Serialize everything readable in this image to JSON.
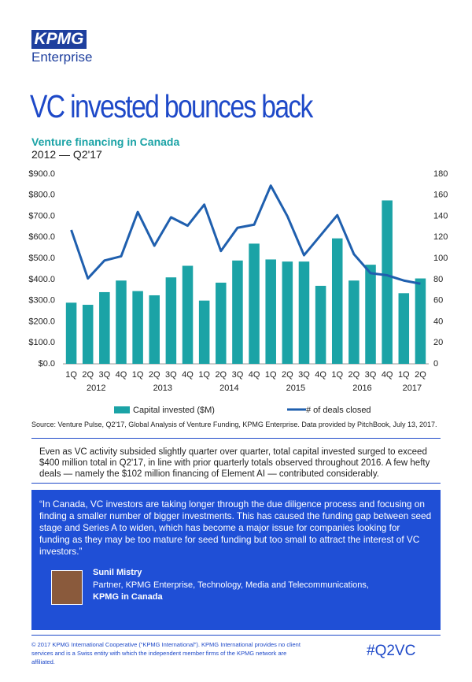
{
  "header": {
    "logo": "KPMG",
    "logo_sub": "Enterprise",
    "title": "VC invested bounces back"
  },
  "chart_data": {
    "type": "bar",
    "title": "Venture financing in Canada",
    "subtitle": "2012 — Q2'17",
    "categories": [
      "1Q",
      "2Q",
      "3Q",
      "4Q",
      "1Q",
      "2Q",
      "3Q",
      "4Q",
      "1Q",
      "2Q",
      "3Q",
      "4Q",
      "1Q",
      "2Q",
      "3Q",
      "4Q",
      "1Q",
      "2Q",
      "3Q",
      "4Q",
      "1Q",
      "2Q"
    ],
    "years": [
      "2012",
      "2013",
      "2014",
      "2015",
      "2016",
      "2017"
    ],
    "series": [
      {
        "name": "Capital invested ($M)",
        "type": "bar",
        "color": "#1ba3a6",
        "values": [
          290,
          280,
          340,
          395,
          345,
          325,
          410,
          465,
          300,
          385,
          490,
          570,
          495,
          485,
          485,
          370,
          595,
          395,
          470,
          775,
          335,
          405
        ]
      },
      {
        "name": "# of deals closed",
        "type": "line",
        "axis": "y2",
        "color": "#1f5fae",
        "values": [
          127,
          81,
          98,
          102,
          144,
          112,
          139,
          131,
          151,
          107,
          129,
          132,
          169,
          140,
          103,
          122,
          141,
          104,
          86,
          84,
          79,
          76
        ]
      }
    ],
    "ylim": [
      0,
      900
    ],
    "yticks": [
      {
        "value": 0,
        "label": "$0.0"
      },
      {
        "value": 100,
        "label": "$100.0"
      },
      {
        "value": 200,
        "label": "$200.0"
      },
      {
        "value": 300,
        "label": "$300.0"
      },
      {
        "value": 400,
        "label": "$400.0"
      },
      {
        "value": 500,
        "label": "$500.0"
      },
      {
        "value": 600,
        "label": "$600.0"
      },
      {
        "value": 700,
        "label": "$700.0"
      },
      {
        "value": 800,
        "label": "$800.0"
      },
      {
        "value": 900,
        "label": "$900.0"
      }
    ],
    "y2lim": [
      0,
      180
    ],
    "y2ticks": [
      0,
      20,
      40,
      60,
      80,
      100,
      120,
      140,
      160,
      180
    ],
    "grid": false,
    "legend": "bottom",
    "source": "Source: Venture Pulse, Q2'17, Global Analysis of Venture Funding, KPMG Enterprise. Data provided by PitchBook, July 13, 2017."
  },
  "body": "Even as VC activity subsided slightly quarter over quarter, total capital invested surged to exceed $400 million total in Q2'17, in line with prior quarterly totals observed throughout 2016. A few hefty deals — namely the $102 million financing of Element AI — contributed considerably.",
  "quote": {
    "text": "“In Canada, VC investors are taking longer through the due diligence process and focusing on finding a smaller number of bigger investments. This has caused the funding gap between seed stage and Series A to widen, which has become a major issue for companies looking for funding as they may be too mature for seed funding but too small to attract the interest of VC investors.”",
    "name": "Sunil Mistry",
    "role": "Partner, KPMG Enterprise, Technology, Media and Telecommunications,",
    "org": "KPMG in Canada"
  },
  "footer": {
    "legal": "© 2017 KPMG International Cooperative (“KPMG International”). KPMG International provides no client services and is a Swiss entity with which the independent member firms of the KPMG network are affiliated.",
    "hashtag": "#Q2VC"
  }
}
